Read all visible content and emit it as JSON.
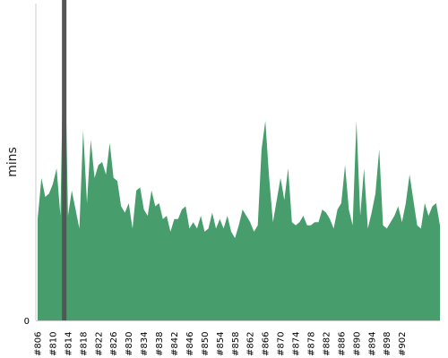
{
  "chart_data": {
    "type": "area",
    "title": "",
    "xlabel": "",
    "ylabel": "mins",
    "ylim": [
      0,
      100
    ],
    "y_ticks": [
      "0"
    ],
    "x_tick_labels": [
      "#806",
      "#810",
      "#814",
      "#818",
      "#822",
      "#826",
      "#830",
      "#834",
      "#838",
      "#842",
      "#846",
      "#850",
      "#854",
      "#858",
      "#862",
      "#866",
      "#870",
      "#874",
      "#878",
      "#882",
      "#886",
      "#890",
      "#894",
      "#898",
      "#902"
    ],
    "colors": {
      "fill": "#479e6c",
      "highlight_line": "#555555",
      "axis": "#cccccc"
    },
    "highlight": {
      "x_index": 7
    },
    "series": [
      {
        "values": [
          32,
          45,
          39,
          40,
          43,
          48,
          33,
          110,
          33,
          41,
          35,
          29,
          60,
          37,
          57,
          45,
          49,
          50,
          46,
          56,
          45,
          44,
          36,
          34,
          37,
          29,
          41,
          42,
          35,
          33,
          41,
          36,
          37,
          32,
          33,
          28,
          32,
          32,
          35,
          36,
          29,
          31,
          29,
          33,
          28,
          29,
          34,
          29,
          32,
          29,
          33,
          28,
          26,
          30,
          35,
          33,
          31,
          28,
          30,
          54,
          63,
          45,
          31,
          38,
          45,
          38,
          48,
          31,
          30,
          31,
          33,
          30,
          30,
          31,
          31,
          35,
          34,
          32,
          29,
          35,
          37,
          49,
          35,
          30,
          63,
          33,
          48,
          29,
          34,
          40,
          54,
          30,
          29,
          31,
          33,
          36,
          31,
          37,
          46,
          38,
          30,
          29,
          37,
          33,
          36,
          37,
          30
        ]
      }
    ]
  }
}
